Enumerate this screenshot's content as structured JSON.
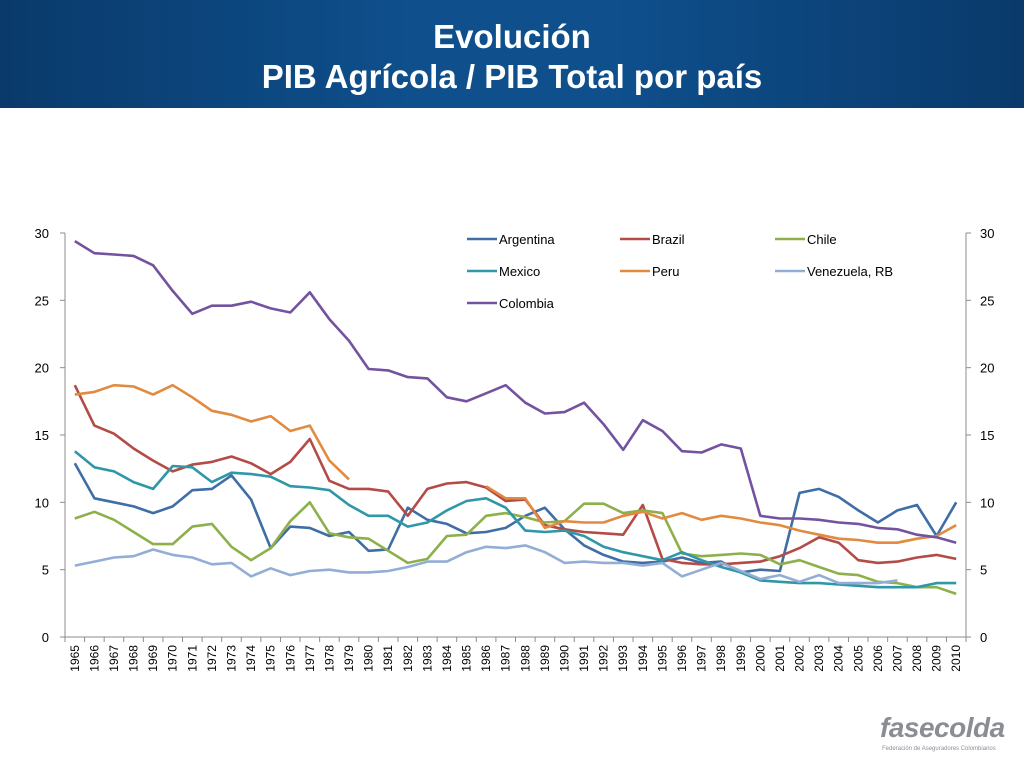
{
  "header": {
    "title_line1": "Evolución",
    "title_line2": "PIB Agrícola / PIB Total por país"
  },
  "logo": {
    "word": "fasecolda",
    "tagline": "Federación de Aseguradores Colombianos"
  },
  "chart_data": {
    "type": "line",
    "ylim": [
      0,
      30
    ],
    "yticks": [
      0,
      5,
      10,
      15,
      20,
      25,
      30
    ],
    "grid": false,
    "legend_position": "top-right",
    "x": [
      "1965",
      "1966",
      "1967",
      "1968",
      "1969",
      "1970",
      "1971",
      "1972",
      "1973",
      "1974",
      "1975",
      "1976",
      "1977",
      "1978",
      "1979",
      "1980",
      "1981",
      "1982",
      "1983",
      "1984",
      "1985",
      "1986",
      "1987",
      "1988",
      "1989",
      "1990",
      "1991",
      "1992",
      "1993",
      "1994",
      "1995",
      "1996",
      "1997",
      "1998",
      "1999",
      "2000",
      "2001",
      "2002",
      "2003",
      "2004",
      "2005",
      "2006",
      "2007",
      "2008",
      "2009",
      "2010"
    ],
    "series": [
      {
        "name": "Argentina",
        "color": "#3f6ea6",
        "values": [
          12.9,
          10.3,
          10.0,
          9.7,
          9.2,
          9.7,
          10.9,
          11.0,
          12.0,
          10.2,
          6.6,
          8.2,
          8.1,
          7.5,
          7.8,
          6.4,
          6.5,
          9.6,
          8.7,
          8.4,
          7.7,
          7.8,
          8.1,
          9.0,
          9.6,
          8.0,
          6.8,
          6.1,
          5.6,
          5.5,
          5.6,
          5.9,
          5.5,
          5.6,
          4.8,
          5.0,
          4.9,
          10.7,
          11.0,
          10.4,
          9.4,
          8.5,
          9.4,
          9.8,
          7.5,
          10.0
        ]
      },
      {
        "name": "Brazil",
        "color": "#b34b47",
        "values": [
          18.7,
          15.7,
          15.1,
          14.0,
          13.1,
          12.3,
          12.8,
          13.0,
          13.4,
          12.9,
          12.1,
          13.0,
          14.7,
          11.6,
          11.0,
          11.0,
          10.8,
          9.0,
          11.0,
          11.4,
          11.5,
          11.1,
          10.1,
          10.2,
          8.3,
          8.0,
          7.8,
          7.7,
          7.6,
          9.8,
          5.8,
          5.5,
          5.4,
          5.4,
          5.5,
          5.6,
          6.0,
          6.6,
          7.4,
          7.0,
          5.7,
          5.5,
          5.6,
          5.9,
          6.1,
          5.8
        ]
      },
      {
        "name": "Chile",
        "color": "#8db04b",
        "values": [
          8.8,
          9.3,
          8.7,
          7.8,
          6.9,
          6.9,
          8.2,
          8.4,
          6.7,
          5.7,
          6.6,
          8.6,
          10.0,
          7.7,
          7.4,
          7.3,
          6.4,
          5.5,
          5.8,
          7.5,
          7.6,
          9.0,
          9.2,
          8.9,
          8.5,
          8.6,
          9.9,
          9.9,
          9.2,
          9.4,
          9.2,
          6.2,
          6.0,
          6.1,
          6.2,
          6.1,
          5.4,
          5.7,
          5.2,
          4.7,
          4.6,
          4.1,
          4.0,
          3.7,
          3.7,
          3.2
        ]
      },
      {
        "name": "Mexico",
        "color": "#2f97a8",
        "values": [
          13.8,
          12.6,
          12.3,
          11.5,
          11.0,
          12.7,
          12.6,
          11.5,
          12.2,
          12.1,
          11.9,
          11.2,
          11.1,
          10.9,
          9.8,
          9.0,
          9.0,
          8.2,
          8.5,
          9.4,
          10.1,
          10.3,
          9.6,
          7.9,
          7.8,
          7.9,
          7.5,
          6.7,
          6.3,
          6.0,
          5.7,
          6.3,
          5.7,
          5.2,
          4.8,
          4.2,
          4.1,
          4.0,
          4.0,
          3.9,
          3.8,
          3.7,
          3.7,
          3.7,
          4.0,
          4.0
        ]
      },
      {
        "name": "Peru",
        "color": "#e28a3f",
        "values": [
          18.0,
          18.2,
          18.7,
          18.6,
          18.0,
          18.7,
          17.8,
          16.8,
          16.5,
          16.0,
          16.4,
          15.3,
          15.7,
          13.1,
          11.7,
          null,
          null,
          null,
          null,
          null,
          null,
          11.2,
          10.3,
          10.3,
          8.1,
          8.6,
          8.5,
          8.5,
          9.0,
          9.3,
          8.8,
          9.2,
          8.7,
          9.0,
          8.8,
          8.5,
          8.3,
          7.9,
          7.6,
          7.3,
          7.2,
          7.0,
          7.0,
          7.3,
          7.5,
          8.3
        ]
      },
      {
        "name": "Venezuela, RB",
        "color": "#93aed6",
        "values": [
          5.3,
          5.6,
          5.9,
          6.0,
          6.5,
          6.1,
          5.9,
          5.4,
          5.5,
          4.5,
          5.1,
          4.6,
          4.9,
          5.0,
          4.8,
          4.8,
          4.9,
          5.2,
          5.6,
          5.6,
          6.3,
          6.7,
          6.6,
          6.8,
          6.3,
          5.5,
          5.6,
          5.5,
          5.5,
          5.3,
          5.5,
          4.5,
          5.0,
          5.5,
          4.9,
          4.3,
          4.6,
          4.1,
          4.6,
          4.0,
          4.0,
          4.0,
          4.2,
          null,
          null,
          null
        ]
      },
      {
        "name": "Colombia",
        "color": "#7353a0",
        "values": [
          29.4,
          28.5,
          28.4,
          28.3,
          27.6,
          25.7,
          24.0,
          24.6,
          24.6,
          24.9,
          24.4,
          24.1,
          25.6,
          23.6,
          22.0,
          19.9,
          19.8,
          19.3,
          19.2,
          17.8,
          17.5,
          18.1,
          18.7,
          17.4,
          16.6,
          16.7,
          17.4,
          15.8,
          13.9,
          16.1,
          15.3,
          13.8,
          13.7,
          14.3,
          14.0,
          9.0,
          8.8,
          8.8,
          8.7,
          8.5,
          8.4,
          8.1,
          8.0,
          7.6,
          7.4,
          7.0
        ]
      }
    ]
  }
}
